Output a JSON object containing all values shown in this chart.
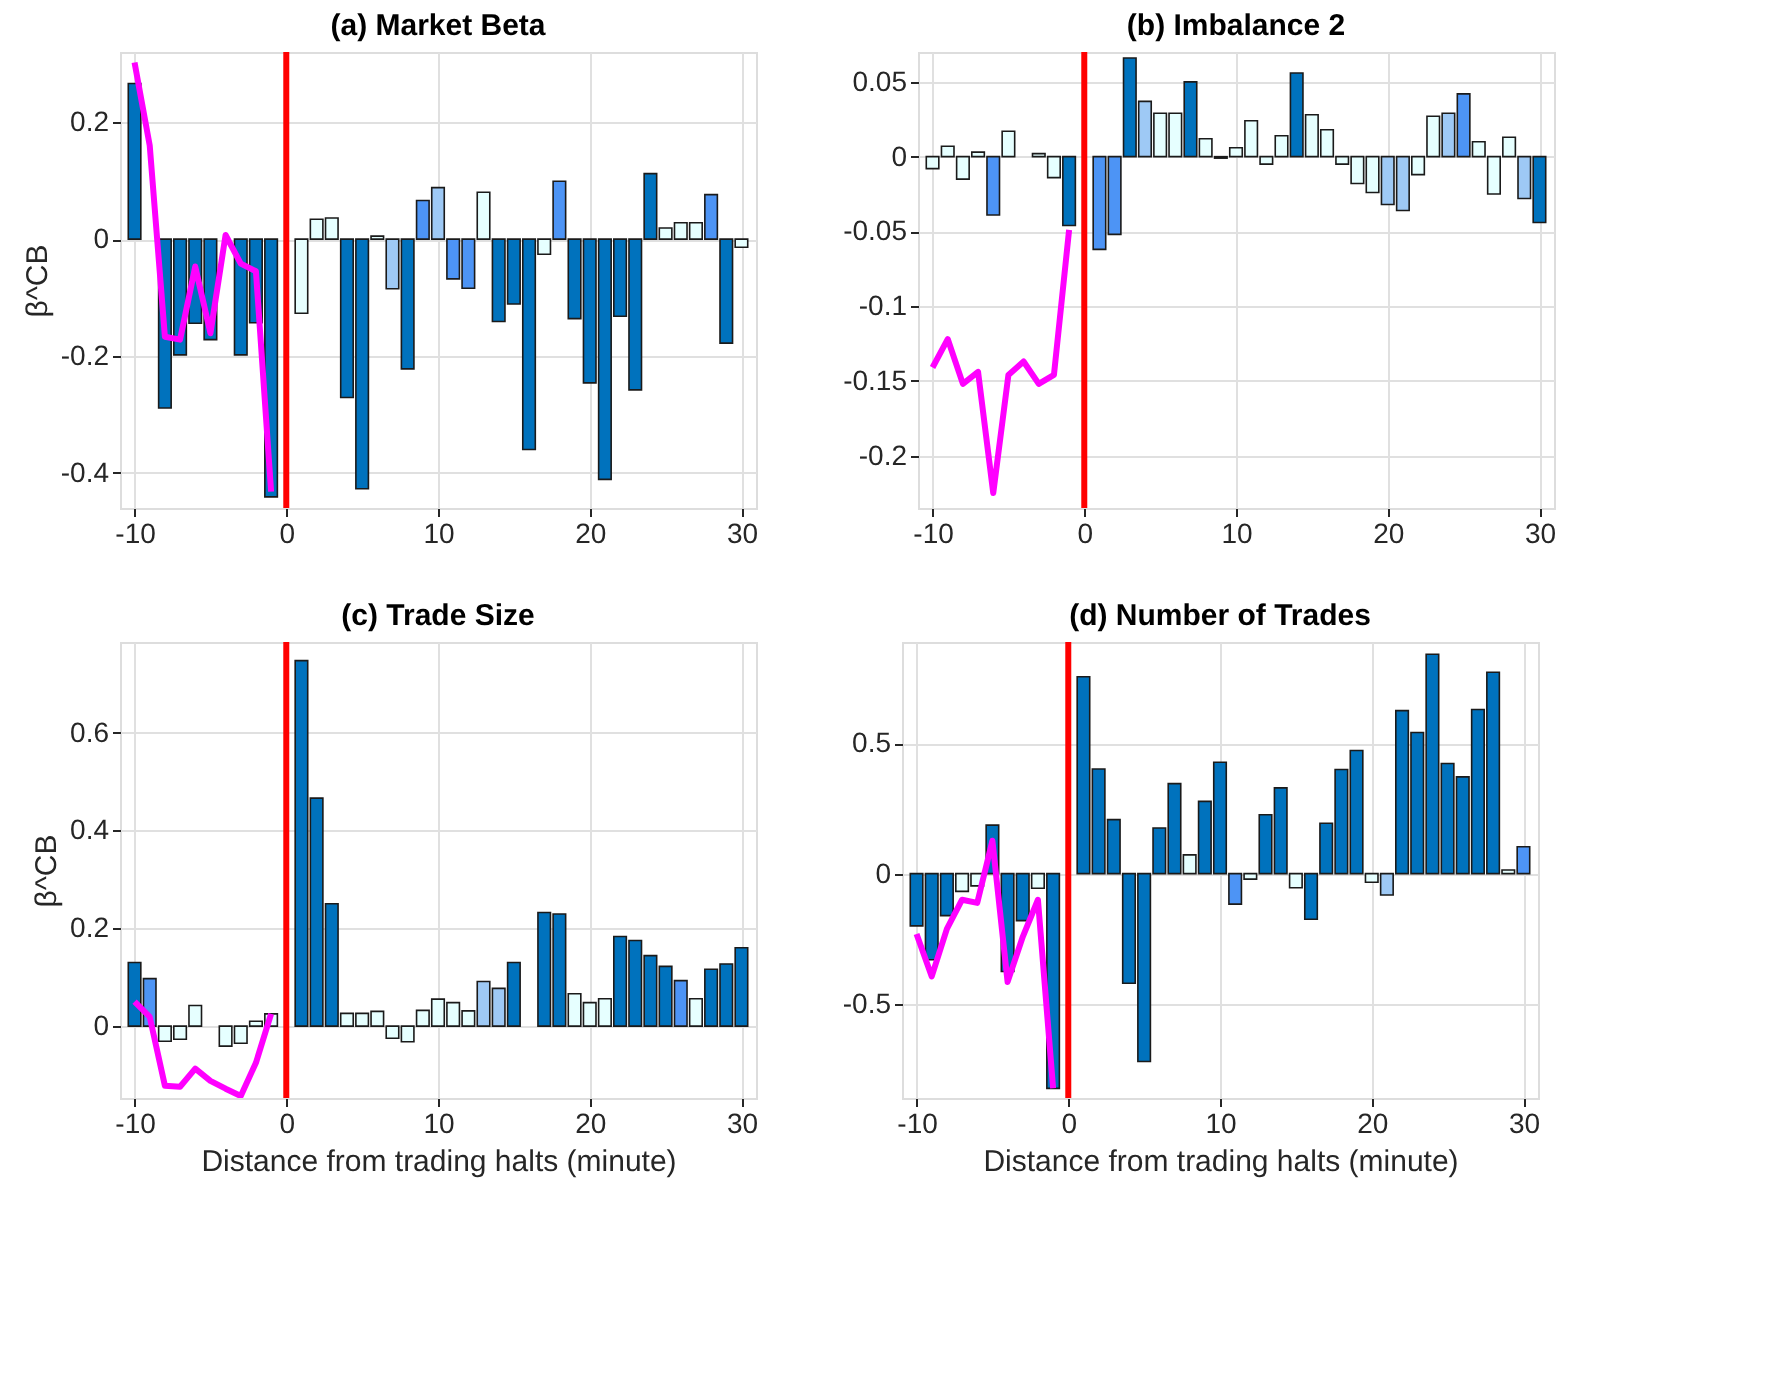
{
  "chart_data": [
    {
      "type": "bar",
      "title": "(a) Market Beta",
      "ylabel": "β^CB",
      "xlim": [
        -10.3,
        30.3
      ],
      "xticks": [
        -10,
        0,
        10,
        20,
        30
      ],
      "ylim": [
        -0.46,
        0.32
      ],
      "yticks": [
        -0.4,
        -0.2,
        0,
        0.2
      ],
      "grid": true,
      "ref_lines": [
        {
          "axis": "x",
          "value": 0,
          "color": "#ff0000"
        }
      ],
      "series": [
        {
          "x": [
            -10,
            -9,
            -8,
            -7,
            -6,
            -5,
            -4,
            -3,
            -2,
            -1,
            1,
            2,
            3,
            4,
            5,
            6,
            7,
            8,
            9,
            10,
            11,
            12,
            13,
            14,
            15,
            16,
            17,
            18,
            19,
            20,
            21,
            22,
            23,
            24,
            25,
            26,
            27,
            28,
            29,
            30
          ],
          "values": [
            0.266,
            null,
            -0.289,
            -0.198,
            -0.144,
            -0.172,
            null,
            -0.198,
            -0.143,
            -0.441,
            -0.127,
            0.034,
            0.036,
            -0.271,
            -0.427,
            0.005,
            -0.085,
            -0.222,
            0.066,
            0.088,
            -0.068,
            -0.084,
            0.08,
            -0.141,
            -0.111,
            -0.36,
            -0.026,
            0.099,
            -0.136,
            -0.246,
            -0.411,
            -0.132,
            -0.258,
            0.112,
            0.019,
            0.028,
            0.028,
            0.076,
            -0.178,
            -0.014
          ],
          "colors": [
            "#0072bd",
            null,
            "#0072bd",
            "#0072bd",
            "#0072bd",
            "#0072bd",
            null,
            "#0072bd",
            "#0072bd",
            "#0072bd",
            "#e6ffff",
            "#e6ffff",
            "#e6ffff",
            "#0072bd",
            "#0072bd",
            "#e6ffff",
            "#9ec9f5",
            "#0072bd",
            "#4d94f5",
            "#9ec9f5",
            "#4d94f5",
            "#4d94f5",
            "#e6ffff",
            "#0072bd",
            "#0072bd",
            "#0072bd",
            "#e6ffff",
            "#4d94f5",
            "#0072bd",
            "#0072bd",
            "#0072bd",
            "#0072bd",
            "#0072bd",
            "#0072bd",
            "#e6ffff",
            "#e6ffff",
            "#e6ffff",
            "#4d94f5",
            "#0072bd",
            "#e6ffff"
          ]
        },
        {
          "type": "line",
          "color": "#ff00ff",
          "x": [
            -10,
            -9,
            -8,
            -7,
            -6,
            -5,
            -4,
            -3,
            -2,
            -1
          ],
          "values": [
            0.302,
            0.16,
            -0.167,
            -0.172,
            -0.047,
            -0.161,
            0.007,
            -0.042,
            -0.055,
            -0.432
          ]
        }
      ]
    },
    {
      "type": "bar",
      "title": "(b) Imbalance 2",
      "xlim": [
        -10.3,
        30.3
      ],
      "xticks": [
        -10,
        0,
        10,
        20,
        30
      ],
      "ylim": [
        -0.235,
        0.07
      ],
      "yticks": [
        -0.2,
        -0.15,
        -0.1,
        -0.05,
        0,
        0.05
      ],
      "grid": true,
      "ref_lines": [
        {
          "axis": "x",
          "value": 0,
          "color": "#ff0000"
        }
      ],
      "series": [
        {
          "x": [
            -10,
            -9,
            -8,
            -7,
            -6,
            -5,
            -4,
            -3,
            -2,
            -1,
            1,
            2,
            3,
            4,
            5,
            6,
            7,
            8,
            9,
            10,
            11,
            12,
            13,
            14,
            15,
            16,
            17,
            18,
            19,
            20,
            21,
            22,
            23,
            24,
            25,
            26,
            27,
            28,
            29,
            30
          ],
          "values": [
            -0.008,
            0.007,
            -0.015,
            0.003,
            -0.039,
            0.017,
            null,
            0.002,
            -0.014,
            -0.046,
            -0.062,
            -0.052,
            0.066,
            0.037,
            0.029,
            0.029,
            0.05,
            0.012,
            -0.001,
            0.006,
            0.024,
            -0.005,
            0.014,
            0.056,
            0.028,
            0.018,
            -0.005,
            -0.018,
            -0.024,
            -0.032,
            -0.036,
            -0.012,
            0.027,
            0.029,
            0.042,
            0.01,
            -0.025,
            0.013,
            -0.028,
            -0.044
          ],
          "colors": [
            "#e6ffff",
            "#e6ffff",
            "#e6ffff",
            "#e6ffff",
            "#4d94f5",
            "#e6ffff",
            null,
            "#e6ffff",
            "#e6ffff",
            "#0072bd",
            "#4d94f5",
            "#4d94f5",
            "#0072bd",
            "#9ec9f5",
            "#e6ffff",
            "#e6ffff",
            "#0072bd",
            "#e6ffff",
            "#e6ffff",
            "#e6ffff",
            "#e6ffff",
            "#e6ffff",
            "#e6ffff",
            "#0072bd",
            "#e6ffff",
            "#e6ffff",
            "#e6ffff",
            "#e6ffff",
            "#e6ffff",
            "#9ec9f5",
            "#9ec9f5",
            "#e6ffff",
            "#e6ffff",
            "#9ec9f5",
            "#4d94f5",
            "#e6ffff",
            "#e6ffff",
            "#e6ffff",
            "#9ec9f5",
            "#0072bd"
          ]
        },
        {
          "type": "line",
          "color": "#ff00ff",
          "x": [
            -10,
            -9,
            -8,
            -7,
            -6,
            -5,
            -4,
            -3,
            -2,
            -1
          ],
          "values": [
            -0.141,
            -0.122,
            -0.152,
            -0.144,
            -0.225,
            -0.146,
            -0.137,
            -0.152,
            -0.146,
            -0.049
          ]
        }
      ]
    },
    {
      "type": "bar",
      "title": "(c) Trade Size",
      "ylabel": "β^CB",
      "xlabel": "Distance from trading halts (minute)",
      "xlim": [
        -10.3,
        30.3
      ],
      "xticks": [
        -10,
        0,
        10,
        20,
        30
      ],
      "ylim": [
        -0.147,
        0.785
      ],
      "yticks": [
        0,
        0.2,
        0.4,
        0.6
      ],
      "grid": true,
      "ref_lines": [
        {
          "axis": "x",
          "value": 0,
          "color": "#ff0000"
        }
      ],
      "series": [
        {
          "x": [
            -10,
            -9,
            -8,
            -7,
            -6,
            -5,
            -4,
            -3,
            -2,
            -1,
            1,
            2,
            3,
            4,
            5,
            6,
            7,
            8,
            9,
            10,
            11,
            12,
            13,
            14,
            15,
            16,
            17,
            18,
            19,
            20,
            21,
            22,
            23,
            24,
            25,
            26,
            27,
            28,
            29,
            30
          ],
          "values": [
            0.13,
            0.097,
            -0.031,
            -0.027,
            0.042,
            null,
            -0.041,
            -0.035,
            0.01,
            0.025,
            0.747,
            0.466,
            0.25,
            0.026,
            0.026,
            0.03,
            -0.025,
            -0.032,
            0.032,
            0.055,
            0.048,
            0.031,
            0.091,
            0.077,
            0.13,
            null,
            0.232,
            0.229,
            0.066,
            0.048,
            0.056,
            0.183,
            0.175,
            0.144,
            0.122,
            0.093,
            0.056,
            0.116,
            0.127,
            0.16
          ],
          "colors": [
            "#0072bd",
            "#4d94f5",
            "#e6ffff",
            "#e6ffff",
            "#e6ffff",
            "#e6ffff",
            "#e6ffff",
            "#e6ffff",
            "#e6ffff",
            "#e6ffff",
            "#0072bd",
            "#0072bd",
            "#0072bd",
            "#e6ffff",
            "#e6ffff",
            "#e6ffff",
            "#e6ffff",
            "#e6ffff",
            "#e6ffff",
            "#e6ffff",
            "#e6ffff",
            "#e6ffff",
            "#9ec9f5",
            "#9ec9f5",
            "#0072bd",
            null,
            "#0072bd",
            "#0072bd",
            "#e6ffff",
            "#e6ffff",
            "#e6ffff",
            "#0072bd",
            "#0072bd",
            "#0072bd",
            "#0072bd",
            "#4d94f5",
            "#e6ffff",
            "#0072bd",
            "#0072bd",
            "#0072bd"
          ]
        },
        {
          "type": "line",
          "color": "#ff00ff",
          "x": [
            -10,
            -9,
            -8,
            -7,
            -6,
            -5,
            -4,
            -3,
            -2,
            -1
          ],
          "values": [
            0.05,
            0.019,
            -0.122,
            -0.124,
            -0.087,
            -0.112,
            -0.128,
            -0.143,
            -0.075,
            0.025
          ]
        }
      ]
    },
    {
      "type": "bar",
      "title": "(d) Number of Trades",
      "xlabel": "Distance from trading halts (minute)",
      "xlim": [
        -10.3,
        30.3
      ],
      "xticks": [
        -10,
        0,
        10,
        20,
        30
      ],
      "ylim": [
        -0.86,
        0.888
      ],
      "yticks": [
        -0.5,
        0,
        0.5
      ],
      "grid": true,
      "ref_lines": [
        {
          "axis": "x",
          "value": 0,
          "color": "#ff0000"
        }
      ],
      "series": [
        {
          "x": [
            -10,
            -9,
            -8,
            -7,
            -6,
            -5,
            -4,
            -3,
            -2,
            -1,
            1,
            2,
            3,
            4,
            5,
            6,
            7,
            8,
            9,
            10,
            11,
            12,
            13,
            14,
            15,
            16,
            17,
            18,
            19,
            20,
            21,
            22,
            23,
            24,
            25,
            26,
            27,
            28,
            29,
            30
          ],
          "values": [
            -0.2,
            -0.33,
            -0.161,
            -0.068,
            -0.047,
            0.186,
            -0.375,
            -0.18,
            -0.056,
            -0.823,
            0.755,
            0.401,
            0.207,
            -0.42,
            -0.72,
            0.175,
            0.345,
            0.072,
            0.277,
            0.427,
            -0.117,
            -0.021,
            0.226,
            0.329,
            -0.054,
            -0.175,
            0.193,
            0.399,
            0.472,
            -0.033,
            -0.082,
            0.625,
            0.541,
            0.841,
            0.422,
            0.371,
            0.629,
            0.772,
            0.014,
            0.103
          ],
          "colors": [
            "#0072bd",
            "#0072bd",
            "#0072bd",
            "#e6ffff",
            "#e6ffff",
            "#0072bd",
            "#0072bd",
            "#0072bd",
            "#e6ffff",
            "#0072bd",
            "#0072bd",
            "#0072bd",
            "#0072bd",
            "#0072bd",
            "#0072bd",
            "#0072bd",
            "#0072bd",
            "#e6ffff",
            "#0072bd",
            "#0072bd",
            "#4d94f5",
            "#e6ffff",
            "#0072bd",
            "#0072bd",
            "#e6ffff",
            "#0072bd",
            "#0072bd",
            "#0072bd",
            "#0072bd",
            "#e6ffff",
            "#9ec9f5",
            "#0072bd",
            "#0072bd",
            "#0072bd",
            "#0072bd",
            "#0072bd",
            "#0072bd",
            "#0072bd",
            "#e6ffff",
            "#4d94f5"
          ]
        },
        {
          "type": "line",
          "color": "#ff00ff",
          "x": [
            -10,
            -9,
            -8,
            -7,
            -6,
            -5,
            -4,
            -3,
            -2,
            -1
          ],
          "values": [
            -0.231,
            -0.394,
            -0.212,
            -0.1,
            -0.112,
            0.126,
            -0.415,
            -0.242,
            -0.1,
            -0.823
          ]
        }
      ]
    }
  ]
}
